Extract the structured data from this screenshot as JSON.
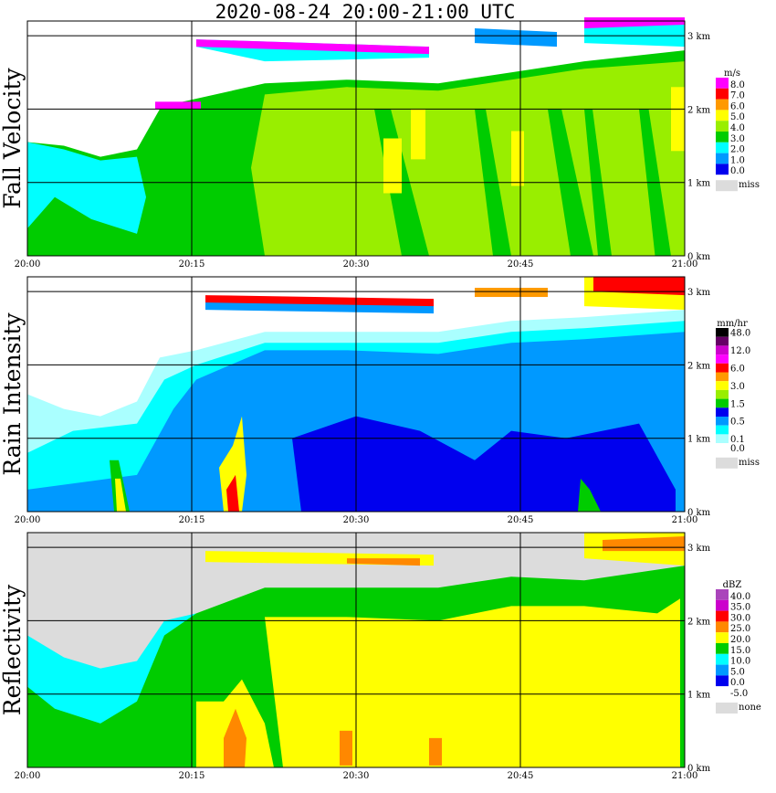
{
  "title": "2020-08-24   20:00-21:00 UTC",
  "colors": {
    "missing": "#dcdcdc",
    "grid": "#000000"
  },
  "chart_data": [
    {
      "type": "heatmap",
      "ylabel": "Fall Velocity",
      "x_ticks": [
        "20:00",
        "20:15",
        "20:30",
        "20:45",
        "21:00"
      ],
      "y_ticks": [
        "0 km",
        "1 km",
        "2 km",
        "3 km"
      ],
      "ylim": [
        0,
        3.2
      ],
      "legend_unit": "m/s",
      "legend": [
        {
          "label": "8.0",
          "color": "#ff00ff"
        },
        {
          "label": "7.0",
          "color": "#ff0000"
        },
        {
          "label": "6.0",
          "color": "#ff9900"
        },
        {
          "label": "5.0",
          "color": "#ffff00"
        },
        {
          "label": "4.0",
          "color": "#99ee00"
        },
        {
          "label": "3.0",
          "color": "#00cc00"
        },
        {
          "label": "2.0",
          "color": "#00ffff"
        },
        {
          "label": "1.0",
          "color": "#0099ff"
        },
        {
          "label": "0.0",
          "color": "#0000ee"
        }
      ],
      "missing_label": "miss"
    },
    {
      "type": "heatmap",
      "ylabel": "Rain Intensity",
      "x_ticks": [
        "20:00",
        "20:15",
        "20:30",
        "20:45",
        "21:00"
      ],
      "y_ticks": [
        "0 km",
        "1 km",
        "2 km",
        "3 km"
      ],
      "ylim": [
        0,
        3.2
      ],
      "legend_unit": "mm/hr",
      "legend": [
        {
          "label": "48.0",
          "color": "#000000"
        },
        {
          "label": "",
          "color": "#660066"
        },
        {
          "label": "12.0",
          "color": "#cc00cc"
        },
        {
          "label": "",
          "color": "#ff00ff"
        },
        {
          "label": "6.0",
          "color": "#ff0000"
        },
        {
          "label": "",
          "color": "#ff9900"
        },
        {
          "label": "3.0",
          "color": "#ffff00"
        },
        {
          "label": "",
          "color": "#99ee00"
        },
        {
          "label": "1.5",
          "color": "#00cc00"
        },
        {
          "label": "",
          "color": "#0000ee"
        },
        {
          "label": "0.5",
          "color": "#0099ff"
        },
        {
          "label": "",
          "color": "#00ffff"
        },
        {
          "label": "0.1",
          "color": "#aaffff"
        },
        {
          "label": "0.0",
          "color": "#ffffff"
        }
      ],
      "missing_label": "miss"
    },
    {
      "type": "heatmap",
      "ylabel": "Reflectivity",
      "x_ticks": [
        "20:00",
        "20:15",
        "20:30",
        "20:45",
        "21:00"
      ],
      "y_ticks": [
        "0 km",
        "1 km",
        "2 km",
        "3 km"
      ],
      "ylim": [
        0,
        3.2
      ],
      "legend_unit": "dBZ",
      "legend": [
        {
          "label": "40.0",
          "color": "#aa44bb"
        },
        {
          "label": "35.0",
          "color": "#cc00cc"
        },
        {
          "label": "30.0",
          "color": "#ff0000"
        },
        {
          "label": "25.0",
          "color": "#ff8800"
        },
        {
          "label": "20.0",
          "color": "#ffff00"
        },
        {
          "label": "15.0",
          "color": "#00cc00"
        },
        {
          "label": "10.0",
          "color": "#00ffff"
        },
        {
          "label": "5.0",
          "color": "#0099ff"
        },
        {
          "label": "0.0",
          "color": "#0000ee"
        },
        {
          "label": "-5.0",
          "color": "#ffffff"
        }
      ],
      "missing_label": "none"
    }
  ]
}
